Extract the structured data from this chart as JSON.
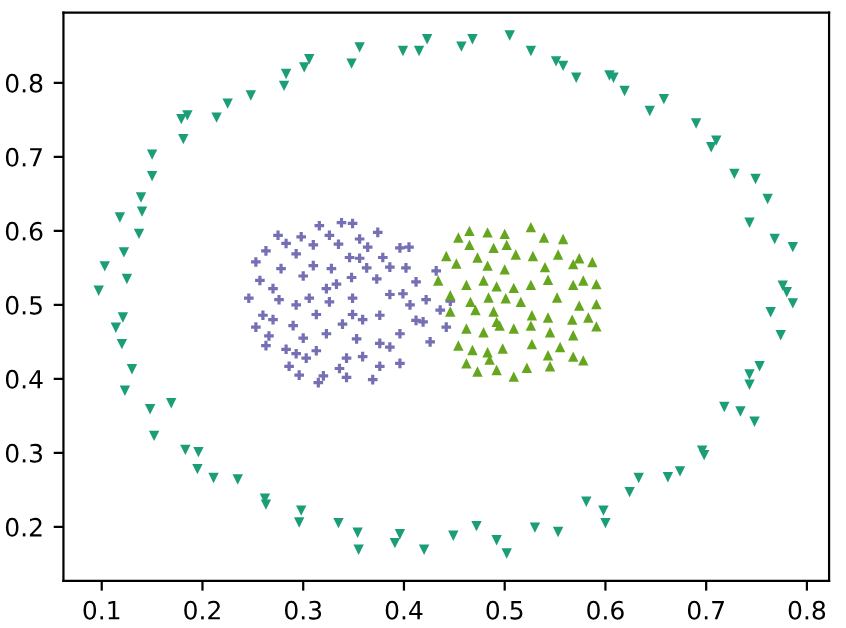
{
  "chart_data": {
    "type": "scatter",
    "xlim": [
      0.062,
      0.822
    ],
    "ylim": [
      0.127,
      0.895
    ],
    "xticks": [
      0.1,
      0.2,
      0.3,
      0.4,
      0.5,
      0.6,
      0.7,
      0.8
    ],
    "yticks": [
      0.2,
      0.3,
      0.4,
      0.5,
      0.6,
      0.7,
      0.8
    ],
    "series": [
      {
        "color": "#1b9e77",
        "marker": "triangle_down",
        "x": [
          0.505,
          0.468,
          0.457,
          0.423,
          0.415,
          0.399,
          0.356,
          0.348,
          0.306,
          0.301,
          0.283,
          0.281,
          0.248,
          0.225,
          0.214,
          0.185,
          0.179,
          0.181,
          0.15,
          0.15,
          0.139,
          0.14,
          0.118,
          0.137,
          0.122,
          0.103,
          0.125,
          0.097,
          0.526,
          0.551,
          0.558,
          0.571,
          0.604,
          0.608,
          0.619,
          0.644,
          0.658,
          0.69,
          0.71,
          0.705,
          0.728,
          0.749,
          0.761,
          0.743,
          0.768,
          0.786,
          0.776,
          0.78,
          0.786,
          0.764,
          0.121,
          0.114,
          0.12,
          0.13,
          0.123,
          0.148,
          0.169,
          0.152,
          0.183,
          0.196,
          0.195,
          0.211,
          0.235,
          0.262,
          0.263,
          0.298,
          0.296,
          0.335,
          0.354,
          0.355,
          0.396,
          0.391,
          0.42,
          0.449,
          0.472,
          0.492,
          0.502,
          0.53,
          0.553,
          0.581,
          0.598,
          0.6,
          0.624,
          0.633,
          0.662,
          0.674,
          0.696,
          0.698,
          0.718,
          0.734,
          0.748,
          0.743,
          0.753,
          0.743,
          0.774
        ],
        "values": [
          0.864,
          0.859,
          0.849,
          0.859,
          0.843,
          0.843,
          0.848,
          0.826,
          0.832,
          0.821,
          0.812,
          0.796,
          0.783,
          0.772,
          0.753,
          0.756,
          0.751,
          0.724,
          0.703,
          0.674,
          0.645,
          0.626,
          0.618,
          0.596,
          0.571,
          0.552,
          0.535,
          0.519,
          0.843,
          0.829,
          0.823,
          0.807,
          0.81,
          0.807,
          0.789,
          0.762,
          0.778,
          0.745,
          0.722,
          0.713,
          0.677,
          0.67,
          0.643,
          0.611,
          0.589,
          0.578,
          0.526,
          0.517,
          0.502,
          0.49,
          0.483,
          0.469,
          0.447,
          0.413,
          0.384,
          0.359,
          0.367,
          0.323,
          0.304,
          0.301,
          0.278,
          0.266,
          0.264,
          0.238,
          0.23,
          0.222,
          0.206,
          0.205,
          0.192,
          0.169,
          0.19,
          0.178,
          0.169,
          0.188,
          0.201,
          0.182,
          0.164,
          0.199,
          0.193,
          0.234,
          0.222,
          0.205,
          0.247,
          0.266,
          0.267,
          0.275,
          0.303,
          0.297,
          0.362,
          0.356,
          0.342,
          0.392,
          0.417,
          0.406,
          0.459
        ]
      },
      {
        "color": "#7570b3",
        "marker": "cross",
        "x": [
          0.338,
          0.349,
          0.316,
          0.374,
          0.275,
          0.298,
          0.326,
          0.356,
          0.283,
          0.31,
          0.335,
          0.364,
          0.396,
          0.405,
          0.263,
          0.293,
          0.346,
          0.356,
          0.379,
          0.253,
          0.278,
          0.31,
          0.328,
          0.363,
          0.386,
          0.402,
          0.257,
          0.3,
          0.348,
          0.373,
          0.412,
          0.432,
          0.27,
          0.323,
          0.333,
          0.399,
          0.246,
          0.276,
          0.306,
          0.349,
          0.386,
          0.422,
          0.446,
          0.293,
          0.326,
          0.406,
          0.436,
          0.26,
          0.313,
          0.349,
          0.376,
          0.412,
          0.27,
          0.253,
          0.29,
          0.339,
          0.359,
          0.396,
          0.419,
          0.442,
          0.266,
          0.3,
          0.323,
          0.353,
          0.376,
          0.426,
          0.263,
          0.283,
          0.293,
          0.313,
          0.303,
          0.343,
          0.359,
          0.386,
          0.396,
          0.286,
          0.336,
          0.376,
          0.296,
          0.32,
          0.343,
          0.369,
          0.315
        ],
        "values": [
          0.611,
          0.61,
          0.607,
          0.598,
          0.594,
          0.592,
          0.594,
          0.589,
          0.583,
          0.581,
          0.582,
          0.578,
          0.577,
          0.578,
          0.573,
          0.569,
          0.564,
          0.563,
          0.564,
          0.558,
          0.549,
          0.553,
          0.549,
          0.55,
          0.551,
          0.55,
          0.533,
          0.539,
          0.537,
          0.535,
          0.531,
          0.546,
          0.522,
          0.522,
          0.528,
          0.515,
          0.509,
          0.507,
          0.509,
          0.509,
          0.514,
          0.507,
          0.505,
          0.5,
          0.504,
          0.5,
          0.493,
          0.486,
          0.487,
          0.487,
          0.486,
          0.479,
          0.48,
          0.47,
          0.472,
          0.474,
          0.48,
          0.461,
          0.477,
          0.47,
          0.458,
          0.455,
          0.461,
          0.454,
          0.448,
          0.45,
          0.445,
          0.44,
          0.434,
          0.438,
          0.428,
          0.428,
          0.43,
          0.443,
          0.421,
          0.417,
          0.414,
          0.417,
          0.405,
          0.404,
          0.402,
          0.399,
          0.395
        ]
      },
      {
        "color": "#66a61e",
        "marker": "triangle",
        "x": [
          0.526,
          0.465,
          0.483,
          0.5,
          0.539,
          0.558,
          0.454,
          0.465,
          0.489,
          0.502,
          0.511,
          0.528,
          0.553,
          0.574,
          0.587,
          0.442,
          0.434,
          0.452,
          0.473,
          0.483,
          0.5,
          0.54,
          0.568,
          0.578,
          0.591,
          0.462,
          0.479,
          0.492,
          0.509,
          0.526,
          0.543,
          0.568,
          0.446,
          0.466,
          0.484,
          0.501,
          0.516,
          0.552,
          0.574,
          0.591,
          0.471,
          0.489,
          0.527,
          0.543,
          0.567,
          0.583,
          0.446,
          0.462,
          0.479,
          0.492,
          0.495,
          0.509,
          0.526,
          0.545,
          0.568,
          0.591,
          0.454,
          0.468,
          0.483,
          0.498,
          0.527,
          0.543,
          0.555,
          0.578,
          0.462,
          0.485,
          0.492,
          0.509,
          0.522,
          0.545,
          0.568,
          0.473
        ],
        "values": [
          0.605,
          0.6,
          0.598,
          0.596,
          0.591,
          0.589,
          0.591,
          0.581,
          0.577,
          0.581,
          0.568,
          0.566,
          0.568,
          0.563,
          0.558,
          0.566,
          0.533,
          0.556,
          0.564,
          0.553,
          0.548,
          0.551,
          0.555,
          0.533,
          0.528,
          0.527,
          0.533,
          0.525,
          0.523,
          0.527,
          0.534,
          0.527,
          0.513,
          0.504,
          0.51,
          0.509,
          0.504,
          0.51,
          0.499,
          0.501,
          0.493,
          0.491,
          0.486,
          0.483,
          0.48,
          0.483,
          0.491,
          0.468,
          0.463,
          0.477,
          0.472,
          0.468,
          0.472,
          0.463,
          0.459,
          0.471,
          0.445,
          0.439,
          0.436,
          0.441,
          0.447,
          0.432,
          0.443,
          0.425,
          0.421,
          0.426,
          0.412,
          0.403,
          0.415,
          0.417,
          0.43,
          0.41
        ]
      }
    ]
  }
}
